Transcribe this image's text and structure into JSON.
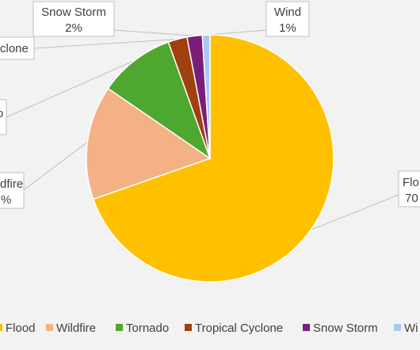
{
  "chart_data": {
    "type": "pie",
    "title": "",
    "slices": [
      {
        "name": "Flood",
        "value": 70,
        "label_name": "Flo",
        "label_value": "70",
        "color": "#FFC000"
      },
      {
        "name": "Wildfire",
        "value": 15,
        "label_name": "dfire",
        "label_value": "%",
        "color": "#F4B183"
      },
      {
        "name": "Tornado",
        "value": 10,
        "label_name": "",
        "label_value": "",
        "color": "#4EA72E"
      },
      {
        "name": "Tropical Cyclone",
        "value": 2.5,
        "label_name": "clone",
        "label_value": "",
        "color": "#A0400E"
      },
      {
        "name": "Snow Storm",
        "value": 2,
        "label_name": "Snow Storm",
        "label_value": "2%",
        "color": "#7B1E7A"
      },
      {
        "name": "Wind",
        "value": 1,
        "label_name": "Wind",
        "label_value": "1%",
        "color": "#A9C9EE"
      }
    ],
    "legend": {
      "position": "bottom",
      "entries": [
        "Flood",
        "Wildfire",
        "Tornado",
        "Tropical Cyclone",
        "Snow Storm",
        "Wi"
      ]
    },
    "tornado_partial_label": "o"
  }
}
